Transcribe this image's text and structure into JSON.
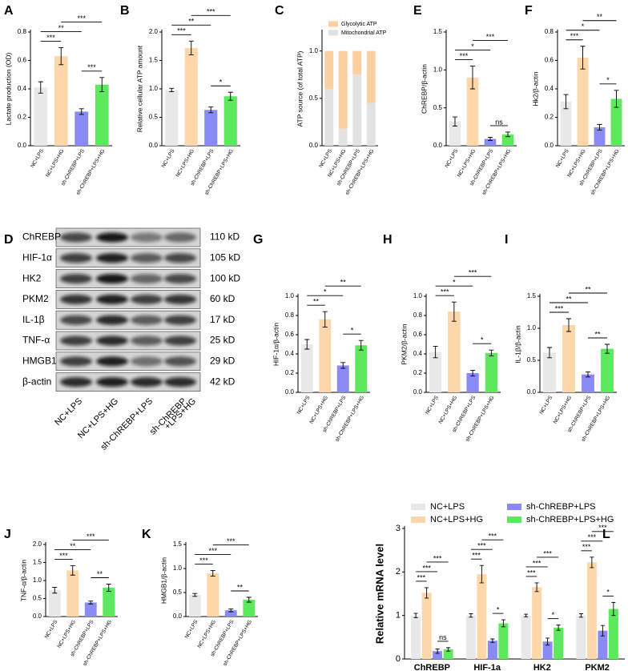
{
  "chart_data": [
    {
      "type": "bar",
      "letter": "A",
      "y_label": "Lactate production (OD)",
      "categories": [
        "NC+LPS",
        "NC+LPS+HG",
        "sh-ChREBP+LPS",
        "sh-ChREBP+LPS+HG"
      ],
      "colors": [
        "#e8e8e8",
        "#fdd7a9",
        "#8a8af5",
        "#5ee85e"
      ],
      "values": [
        0.41,
        0.63,
        0.24,
        0.43
      ],
      "errors": [
        0.04,
        0.06,
        0.02,
        0.05
      ],
      "ylim": [
        0,
        0.8
      ],
      "yticks": [
        {
          "value": 0,
          "label": "0.0"
        },
        0.2,
        0.4,
        0.6,
        0.8
      ],
      "significance": [
        {
          "pair": [
            0,
            1
          ],
          "label": "***"
        },
        {
          "pair": [
            2,
            3
          ],
          "label": "***"
        },
        {
          "pair": [
            0,
            2
          ],
          "label": "**"
        },
        {
          "pair": [
            1,
            3
          ],
          "label": "***"
        }
      ]
    },
    {
      "type": "bar",
      "letter": "B",
      "y_label": "Relative cellular ATP amount",
      "categories": [
        "NC+LPS",
        "NC+LPS+HG",
        "sh-ChREBP+LPS",
        "sh-ChREBP+LPS+HG"
      ],
      "colors": [
        "#e8e8e8",
        "#fdd7a9",
        "#8a8af5",
        "#5ee85e"
      ],
      "values": [
        0.98,
        1.72,
        0.63,
        0.87
      ],
      "errors": [
        0.03,
        0.12,
        0.05,
        0.07
      ],
      "ylim": [
        0,
        2
      ],
      "yticks": [
        {
          "value": 0,
          "label": "0.0"
        },
        0.5,
        {
          "value": 1,
          "label": "1.0"
        },
        1.5,
        {
          "value": 2,
          "label": "2.0"
        }
      ],
      "significance": [
        {
          "pair": [
            0,
            1
          ],
          "label": "***"
        },
        {
          "pair": [
            2,
            3
          ],
          "label": "*"
        },
        {
          "pair": [
            0,
            2
          ],
          "label": "**"
        },
        {
          "pair": [
            1,
            3
          ],
          "label": "***"
        }
      ]
    },
    {
      "type": "stacked_bar",
      "letter": "C",
      "y_label": "ATP source (of total ATP)",
      "categories": [
        "NC+LPS",
        "NC+LPS+HG",
        "sh-ChREBP+LPS",
        "sh-ChREBP+LPS+HG"
      ],
      "series": [
        {
          "name": "Mitochondrial ATP",
          "color": "#e2e2e2",
          "values": [
            0.6,
            0.18,
            0.75,
            0.45
          ]
        },
        {
          "name": "Glycolytic ATP",
          "color": "#fbd0a0",
          "values": [
            0.4,
            0.82,
            0.25,
            0.55
          ]
        }
      ],
      "ylim": [
        0,
        1.2
      ],
      "yticks": [
        {
          "value": 0,
          "label": "0.0"
        },
        0.5,
        {
          "value": 1,
          "label": "1.0"
        }
      ]
    },
    {
      "type": "bar",
      "letter": "E",
      "y_label": "ChREBP/β-actin",
      "categories": [
        "NC+LPS",
        "NC+LPS+HG",
        "sh-ChREBP+LPS",
        "sh-ChREBP+LPS+HG"
      ],
      "colors": [
        "#e8e8e8",
        "#fdd7a9",
        "#8a8af5",
        "#5ee85e"
      ],
      "values": [
        0.32,
        0.9,
        0.09,
        0.15
      ],
      "errors": [
        0.06,
        0.15,
        0.02,
        0.03
      ],
      "ylim": [
        0,
        1.5
      ],
      "yticks": [
        {
          "value": 0,
          "label": "0.0"
        },
        0.5,
        {
          "value": 1,
          "label": "1.0"
        },
        1.5
      ],
      "significance": [
        {
          "pair": [
            0,
            1
          ],
          "label": "***"
        },
        {
          "pair": [
            2,
            3
          ],
          "label": "ns"
        },
        {
          "pair": [
            0,
            2
          ],
          "label": "*"
        },
        {
          "pair": [
            1,
            3
          ],
          "label": "***"
        }
      ]
    },
    {
      "type": "bar",
      "letter": "F",
      "y_label": "Hk2/β-actin",
      "categories": [
        "NC+LPS",
        "NC+LPS+HG",
        "sh-ChREBP+LPS",
        "sh-ChREBP+LPS+HG"
      ],
      "colors": [
        "#e8e8e8",
        "#fdd7a9",
        "#8a8af5",
        "#5ee85e"
      ],
      "values": [
        0.31,
        0.62,
        0.13,
        0.33
      ],
      "errors": [
        0.05,
        0.08,
        0.02,
        0.06
      ],
      "ylim": [
        0,
        0.8
      ],
      "yticks": [
        {
          "value": 0,
          "label": "0.0"
        },
        0.2,
        0.4,
        0.6,
        0.8
      ],
      "significance": [
        {
          "pair": [
            0,
            1
          ],
          "label": "***"
        },
        {
          "pair": [
            2,
            3
          ],
          "label": "*"
        },
        {
          "pair": [
            0,
            2
          ],
          "label": "*"
        },
        {
          "pair": [
            1,
            3
          ],
          "label": "**"
        }
      ]
    },
    {
      "type": "bar",
      "letter": "G",
      "y_label": "HIF-1α/β-actin",
      "categories": [
        "NC+LPS",
        "NC+LPS+HG",
        "sh-ChREBP+LPS",
        "sh-ChREBP+LPS+HG"
      ],
      "colors": [
        "#e8e8e8",
        "#fdd7a9",
        "#8a8af5",
        "#5ee85e"
      ],
      "values": [
        0.5,
        0.76,
        0.28,
        0.49
      ],
      "errors": [
        0.05,
        0.08,
        0.03,
        0.05
      ],
      "ylim": [
        0,
        1
      ],
      "yticks": [
        {
          "value": 0,
          "label": "0.0"
        },
        0.2,
        0.4,
        0.6,
        0.8,
        {
          "value": 1,
          "label": "1.0"
        }
      ],
      "significance": [
        {
          "pair": [
            0,
            1
          ],
          "label": "**"
        },
        {
          "pair": [
            2,
            3
          ],
          "label": "*"
        },
        {
          "pair": [
            0,
            2
          ],
          "label": "*"
        },
        {
          "pair": [
            1,
            3
          ],
          "label": "**"
        }
      ]
    },
    {
      "type": "bar",
      "letter": "H",
      "y_label": "PKM2/β-actin",
      "categories": [
        "NC+LPS",
        "NC+LPS+HG",
        "sh-ChREBP+LPS",
        "sh-ChREBP+LPS+HG"
      ],
      "colors": [
        "#e8e8e8",
        "#fdd7a9",
        "#8a8af5",
        "#5ee85e"
      ],
      "values": [
        0.42,
        0.84,
        0.2,
        0.41
      ],
      "errors": [
        0.06,
        0.1,
        0.03,
        0.03
      ],
      "ylim": [
        0,
        1
      ],
      "yticks": [
        {
          "value": 0,
          "label": "0.0"
        },
        0.2,
        0.4,
        0.6,
        0.8,
        {
          "value": 1,
          "label": "1.0"
        }
      ],
      "significance": [
        {
          "pair": [
            0,
            1
          ],
          "label": "***"
        },
        {
          "pair": [
            2,
            3
          ],
          "label": "*"
        },
        {
          "pair": [
            0,
            2
          ],
          "label": "*"
        },
        {
          "pair": [
            1,
            3
          ],
          "label": "***"
        }
      ]
    },
    {
      "type": "bar",
      "letter": "I",
      "y_label": "IL-1β/β-actin",
      "categories": [
        "NC+LPS",
        "NC+LPS+HG",
        "sh-ChREBP+LPS",
        "sh-ChREBP+LPS+HG"
      ],
      "colors": [
        "#e8e8e8",
        "#fdd7a9",
        "#8a8af5",
        "#5ee85e"
      ],
      "values": [
        0.62,
        1.05,
        0.28,
        0.68
      ],
      "errors": [
        0.08,
        0.1,
        0.04,
        0.07
      ],
      "ylim": [
        0,
        1.5
      ],
      "yticks": [
        {
          "value": 0,
          "label": "0.0"
        },
        0.5,
        {
          "value": 1,
          "label": "1.0"
        },
        1.5
      ],
      "significance": [
        {
          "pair": [
            0,
            1
          ],
          "label": "***"
        },
        {
          "pair": [
            2,
            3
          ],
          "label": "**"
        },
        {
          "pair": [
            0,
            2
          ],
          "label": "**"
        },
        {
          "pair": [
            1,
            3
          ],
          "label": "**"
        }
      ]
    },
    {
      "type": "bar",
      "letter": "J",
      "y_label": "TNF-α/β-actin",
      "categories": [
        "NC+LPS",
        "NC+LPS+HG",
        "sh-ChREBP+LPS",
        "sh-ChREBP+LPS+HG"
      ],
      "colors": [
        "#e8e8e8",
        "#fdd7a9",
        "#8a8af5",
        "#5ee85e"
      ],
      "values": [
        0.73,
        1.28,
        0.39,
        0.8
      ],
      "errors": [
        0.08,
        0.13,
        0.04,
        0.1
      ],
      "ylim": [
        0,
        2
      ],
      "yticks": [
        {
          "value": 0,
          "label": "0.0"
        },
        0.5,
        {
          "value": 1,
          "label": "1.0"
        },
        1.5,
        {
          "value": 2,
          "label": "2.0"
        }
      ],
      "significance": [
        {
          "pair": [
            0,
            1
          ],
          "label": "***"
        },
        {
          "pair": [
            2,
            3
          ],
          "label": "**"
        },
        {
          "pair": [
            0,
            2
          ],
          "label": "**"
        },
        {
          "pair": [
            1,
            3
          ],
          "label": "***"
        }
      ]
    },
    {
      "type": "bar",
      "letter": "K",
      "y_label": "HMGB1/β-actin",
      "categories": [
        "NC+LPS",
        "NC+LPS+HG",
        "sh-ChREBP+LPS",
        "sh-ChREBP+LPS+HG"
      ],
      "colors": [
        "#e8e8e8",
        "#fdd7a9",
        "#8a8af5",
        "#5ee85e"
      ],
      "values": [
        0.45,
        0.9,
        0.13,
        0.35
      ],
      "errors": [
        0.03,
        0.06,
        0.03,
        0.05
      ],
      "ylim": [
        0,
        1.5
      ],
      "yticks": [
        {
          "value": 0,
          "label": "0.0"
        },
        0.5,
        {
          "value": 1,
          "label": "1.0"
        },
        1.5
      ],
      "significance": [
        {
          "pair": [
            0,
            1
          ],
          "label": "***"
        },
        {
          "pair": [
            2,
            3
          ],
          "label": "**"
        },
        {
          "pair": [
            0,
            2
          ],
          "label": "***"
        },
        {
          "pair": [
            1,
            3
          ],
          "label": "***"
        }
      ]
    },
    {
      "type": "grouped_bar",
      "letter": "L",
      "y_label": "Relative mRNA level",
      "categories": [
        "ChREBP",
        "HIF-1a",
        "HK2",
        "PKM2"
      ],
      "series": [
        {
          "name": "NC+LPS",
          "color": "#e8e8e8",
          "values": [
            1,
            1,
            1,
            1
          ],
          "errors": [
            0.05,
            0.04,
            0.03,
            0.04
          ]
        },
        {
          "name": "NC+LPS+HG",
          "color": "#fdd7a9",
          "values": [
            1.52,
            1.95,
            1.65,
            2.22
          ],
          "errors": [
            0.12,
            0.2,
            0.1,
            0.12
          ]
        },
        {
          "name": "sh-ChREBP+LPS",
          "color": "#8a8af5",
          "values": [
            0.18,
            0.42,
            0.4,
            0.65
          ],
          "errors": [
            0.05,
            0.04,
            0.08,
            0.12
          ]
        },
        {
          "name": "sh-ChREBP+LPS+HG",
          "color": "#5ee85e",
          "values": [
            0.22,
            0.82,
            0.72,
            1.15
          ],
          "errors": [
            0.04,
            0.08,
            0.06,
            0.15
          ]
        }
      ],
      "ylim": [
        0,
        3
      ],
      "yticks": [
        0,
        1,
        2,
        3
      ],
      "significance": [
        [
          {
            "pair": [
              0,
              1
            ],
            "label": "***"
          },
          {
            "pair": [
              2,
              3
            ],
            "label": "ns"
          },
          {
            "pair": [
              0,
              2
            ],
            "label": "***"
          },
          {
            "pair": [
              1,
              3
            ],
            "label": "***"
          }
        ],
        [
          {
            "pair": [
              0,
              1
            ],
            "label": "***"
          },
          {
            "pair": [
              2,
              3
            ],
            "label": "*"
          },
          {
            "pair": [
              0,
              2
            ],
            "label": "***"
          },
          {
            "pair": [
              1,
              3
            ],
            "label": "***"
          }
        ],
        [
          {
            "pair": [
              0,
              1
            ],
            "label": "***"
          },
          {
            "pair": [
              2,
              3
            ],
            "label": "*"
          },
          {
            "pair": [
              0,
              2
            ],
            "label": "***"
          },
          {
            "pair": [
              1,
              3
            ],
            "label": "***"
          }
        ],
        [
          {
            "pair": [
              0,
              1
            ],
            "label": "***"
          },
          {
            "pair": [
              2,
              3
            ],
            "label": "*"
          },
          {
            "pair": [
              0,
              2
            ],
            "label": "***"
          },
          {
            "pair": [
              1,
              3
            ],
            "label": "***"
          }
        ]
      ]
    }
  ],
  "blot": {
    "letter": "D",
    "proteins": [
      {
        "name": "ChREBP",
        "size": "110 kD"
      },
      {
        "name": "HIF-1α",
        "size": "105 kD"
      },
      {
        "name": "HK2",
        "size": "100  kD"
      },
      {
        "name": "PKM2",
        "size": "60  kD"
      },
      {
        "name": "IL-1β",
        "size": "17  kD"
      },
      {
        "name": "TNF-α",
        "size": "25  kD"
      },
      {
        "name": "HMGB1",
        "size": "29  kD"
      },
      {
        "name": "β-actin",
        "size": "42  kD"
      }
    ],
    "lanes": [
      [
        "NC+LPS"
      ],
      [
        "NC+LPS+HG"
      ],
      [
        "sh-ChREBP+LPS"
      ],
      [
        "sh-ChREBP",
        "+LPS+HG"
      ]
    ]
  }
}
